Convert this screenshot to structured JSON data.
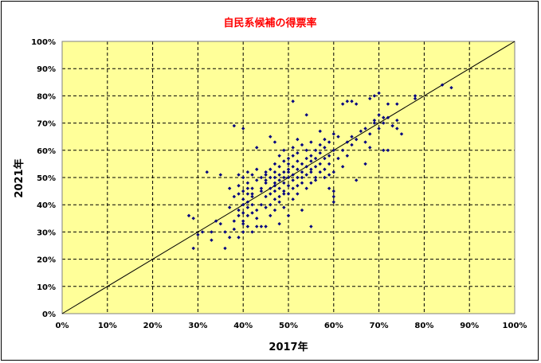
{
  "chart_data": {
    "type": "scatter",
    "title": "自民系候補の得票率",
    "xlabel": "2017年",
    "ylabel": "2021年",
    "xlim": [
      0,
      100
    ],
    "ylim": [
      0,
      100
    ],
    "x_ticks": [
      "0%",
      "10%",
      "20%",
      "30%",
      "40%",
      "50%",
      "60%",
      "70%",
      "80%",
      "90%",
      "100%"
    ],
    "y_ticks": [
      "0%",
      "10%",
      "20%",
      "30%",
      "40%",
      "50%",
      "60%",
      "70%",
      "80%",
      "90%",
      "100%"
    ],
    "grid": true,
    "reference_line": {
      "from": [
        0,
        0
      ],
      "to": [
        100,
        100
      ]
    },
    "colors": {
      "plot_background": "#ffff99",
      "marker": "#000080",
      "grid": "#000000",
      "title": "#ff0000"
    },
    "series": [
      {
        "points": [
          [
            28,
            36
          ],
          [
            29,
            35
          ],
          [
            29,
            24
          ],
          [
            30,
            29
          ],
          [
            31,
            30
          ],
          [
            32,
            52
          ],
          [
            33,
            27
          ],
          [
            33,
            30
          ],
          [
            34,
            34
          ],
          [
            35,
            33
          ],
          [
            35,
            51
          ],
          [
            36,
            30
          ],
          [
            36,
            24
          ],
          [
            37,
            28
          ],
          [
            37,
            39
          ],
          [
            37,
            46
          ],
          [
            38,
            43
          ],
          [
            38,
            34
          ],
          [
            38,
            31
          ],
          [
            38,
            69
          ],
          [
            39,
            51
          ],
          [
            39,
            28
          ],
          [
            39,
            38
          ],
          [
            39,
            44
          ],
          [
            39,
            36
          ],
          [
            39,
            47
          ],
          [
            40,
            34
          ],
          [
            40,
            45
          ],
          [
            40,
            40
          ],
          [
            40,
            30
          ],
          [
            40,
            37
          ],
          [
            40,
            33
          ],
          [
            40,
            68
          ],
          [
            40,
            50
          ],
          [
            40,
            42
          ],
          [
            41,
            41
          ],
          [
            41,
            52
          ],
          [
            41,
            46
          ],
          [
            41,
            36
          ],
          [
            41,
            32
          ],
          [
            41,
            44
          ],
          [
            41,
            39
          ],
          [
            41,
            48
          ],
          [
            42,
            51
          ],
          [
            42,
            44
          ],
          [
            42,
            30
          ],
          [
            42,
            37
          ],
          [
            42,
            40
          ],
          [
            42,
            46
          ],
          [
            42,
            43
          ],
          [
            43,
            38
          ],
          [
            43,
            35
          ],
          [
            43,
            32
          ],
          [
            43,
            49
          ],
          [
            43,
            53
          ],
          [
            43,
            61
          ],
          [
            44,
            32
          ],
          [
            44,
            40
          ],
          [
            44,
            46
          ],
          [
            44,
            50
          ],
          [
            44,
            45
          ],
          [
            45,
            48
          ],
          [
            45,
            43
          ],
          [
            45,
            39
          ],
          [
            45,
            52
          ],
          [
            45,
            49
          ],
          [
            45,
            51
          ],
          [
            45,
            32
          ],
          [
            46,
            46
          ],
          [
            46,
            40
          ],
          [
            46,
            44
          ],
          [
            46,
            53
          ],
          [
            46,
            50
          ],
          [
            46,
            65
          ],
          [
            46,
            36
          ],
          [
            47,
            45
          ],
          [
            47,
            48
          ],
          [
            47,
            38
          ],
          [
            47,
            52
          ],
          [
            47,
            55
          ],
          [
            47,
            50
          ],
          [
            47,
            42
          ],
          [
            47,
            63
          ],
          [
            47,
            47
          ],
          [
            48,
            33
          ],
          [
            48,
            43
          ],
          [
            48,
            49
          ],
          [
            48,
            54
          ],
          [
            48,
            58
          ],
          [
            48,
            41
          ],
          [
            48,
            46
          ],
          [
            48,
            51
          ],
          [
            49,
            44
          ],
          [
            49,
            50
          ],
          [
            49,
            52
          ],
          [
            49,
            48
          ],
          [
            49,
            39
          ],
          [
            49,
            56
          ],
          [
            49,
            60
          ],
          [
            49,
            45
          ],
          [
            50,
            50
          ],
          [
            50,
            53
          ],
          [
            50,
            47
          ],
          [
            50,
            55
          ],
          [
            50,
            44
          ],
          [
            50,
            57
          ],
          [
            50,
            52
          ],
          [
            50,
            36
          ],
          [
            51,
            49
          ],
          [
            51,
            51
          ],
          [
            51,
            54
          ],
          [
            51,
            58
          ],
          [
            51,
            78
          ],
          [
            51,
            46
          ],
          [
            51,
            42
          ],
          [
            51,
            61
          ],
          [
            52,
            53
          ],
          [
            52,
            47
          ],
          [
            52,
            50
          ],
          [
            52,
            56
          ],
          [
            52,
            44
          ],
          [
            52,
            59
          ],
          [
            52,
            64
          ],
          [
            53,
            50
          ],
          [
            53,
            55
          ],
          [
            53,
            38
          ],
          [
            53,
            52
          ],
          [
            53,
            48
          ],
          [
            53,
            62
          ],
          [
            54,
            54
          ],
          [
            54,
            51
          ],
          [
            54,
            57
          ],
          [
            54,
            60
          ],
          [
            54,
            46
          ],
          [
            54,
            73
          ],
          [
            55,
            52
          ],
          [
            55,
            56
          ],
          [
            55,
            48
          ],
          [
            55,
            53
          ],
          [
            55,
            58
          ],
          [
            55,
            32
          ],
          [
            55,
            63
          ],
          [
            56,
            54
          ],
          [
            56,
            50
          ],
          [
            56,
            57
          ],
          [
            56,
            49
          ],
          [
            56,
            60
          ],
          [
            57,
            55
          ],
          [
            57,
            52
          ],
          [
            57,
            59
          ],
          [
            57,
            67
          ],
          [
            57,
            62
          ],
          [
            58,
            53
          ],
          [
            58,
            57
          ],
          [
            58,
            50
          ],
          [
            58,
            61
          ],
          [
            58,
            64
          ],
          [
            59,
            51
          ],
          [
            59,
            55
          ],
          [
            59,
            46
          ],
          [
            59,
            58
          ],
          [
            59,
            63
          ],
          [
            60,
            52
          ],
          [
            60,
            41
          ],
          [
            60,
            60
          ],
          [
            60,
            66
          ],
          [
            60,
            43
          ],
          [
            60,
            45
          ],
          [
            61,
            57
          ],
          [
            61,
            65
          ],
          [
            62,
            60
          ],
          [
            62,
            77
          ],
          [
            62,
            54
          ],
          [
            63,
            78
          ],
          [
            63,
            63
          ],
          [
            63,
            58
          ],
          [
            64,
            62
          ],
          [
            64,
            78
          ],
          [
            64,
            65
          ],
          [
            65,
            77
          ],
          [
            65,
            64
          ],
          [
            65,
            49
          ],
          [
            66,
            67
          ],
          [
            67,
            55
          ],
          [
            67,
            68
          ],
          [
            67,
            63
          ],
          [
            68,
            79
          ],
          [
            68,
            66
          ],
          [
            68,
            61
          ],
          [
            69,
            71
          ],
          [
            69,
            80
          ],
          [
            69,
            70
          ],
          [
            70,
            81
          ],
          [
            70,
            68
          ],
          [
            70,
            73
          ],
          [
            71,
            72
          ],
          [
            71,
            60
          ],
          [
            71,
            70
          ],
          [
            72,
            60
          ],
          [
            72,
            77
          ],
          [
            72,
            72
          ],
          [
            73,
            69
          ],
          [
            73,
            69
          ],
          [
            74,
            68
          ],
          [
            74,
            77
          ],
          [
            74,
            71
          ],
          [
            75,
            66
          ],
          [
            78,
            79
          ],
          [
            78,
            80
          ],
          [
            84,
            84
          ],
          [
            86,
            83
          ]
        ]
      }
    ]
  }
}
